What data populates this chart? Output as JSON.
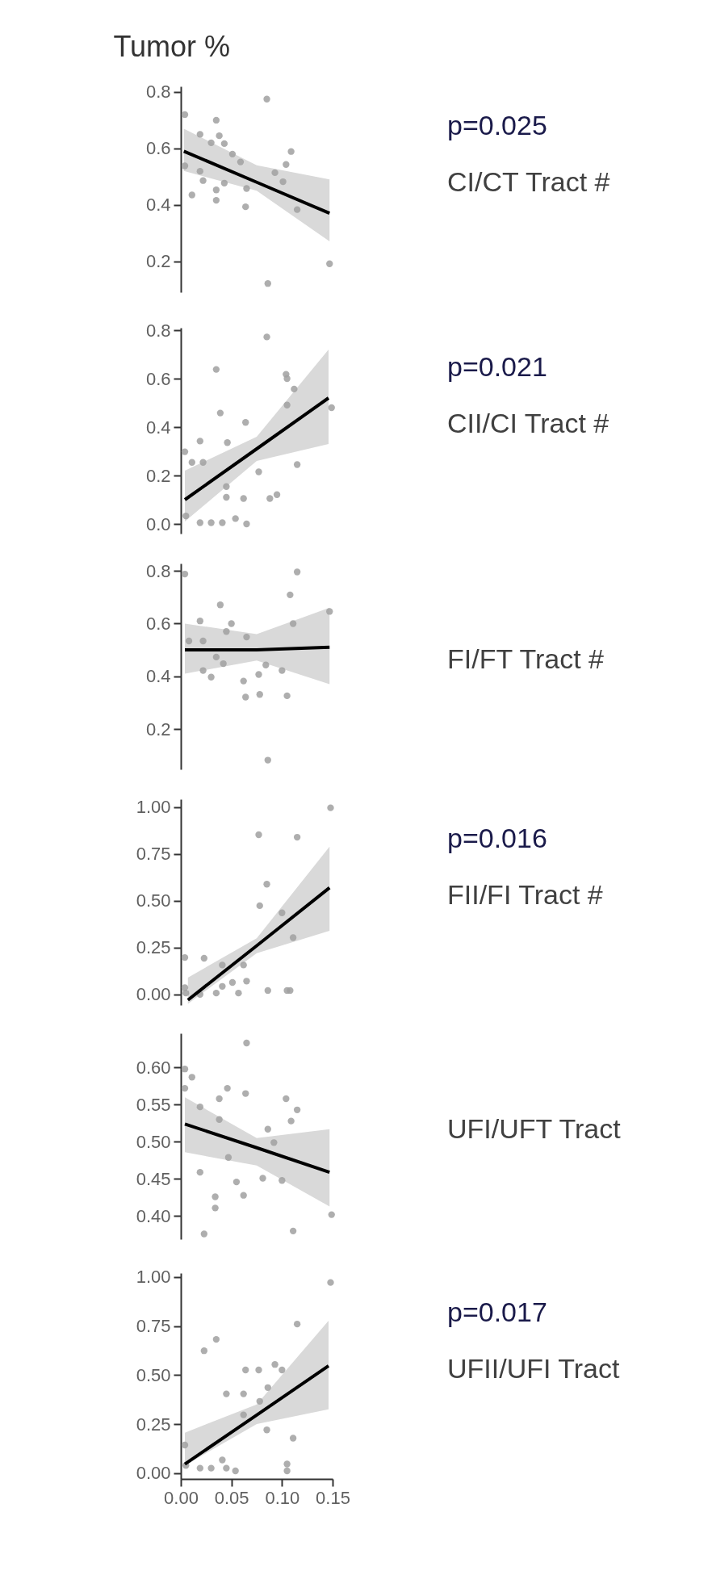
{
  "chart_data": [
    {
      "type": "scatter",
      "title": "Tumor %",
      "annotations": [
        "p=0.025",
        "CI/CT Tract #"
      ],
      "grid": false,
      "tick_labels": "y",
      "xlim": [
        0,
        0.15
      ],
      "ylim": [
        0.09,
        0.82
      ],
      "yticks": [
        0.2,
        0.4,
        0.6,
        0.8
      ],
      "series": [
        {
          "type": "scatter",
          "marker": "circle",
          "color": "#a0a0a0",
          "x": [
            0.085,
            0.004,
            0.035,
            0.019,
            0.038,
            0.043,
            0.004,
            0.019,
            0.022,
            0.051,
            0.059,
            0.043,
            0.011,
            0.035,
            0.035,
            0.064,
            0.065,
            0.093,
            0.104,
            0.109,
            0.101,
            0.115,
            0.147,
            0.086,
            0.03
          ],
          "values": [
            0.775,
            0.72,
            0.7,
            0.65,
            0.645,
            0.617,
            0.538,
            0.519,
            0.486,
            0.58,
            0.552,
            0.477,
            0.435,
            0.453,
            0.416,
            0.393,
            0.458,
            0.514,
            0.543,
            0.589,
            0.482,
            0.383,
            0.191,
            0.121,
            0.62
          ]
        },
        {
          "type": "line",
          "marker": "none",
          "color": "#000000",
          "x": [
            0.003,
            0.075,
            0.147
          ],
          "values": [
            0.59,
            0.48,
            0.37
          ],
          "lower": [
            0.52,
            0.45,
            0.27
          ],
          "upper": [
            0.67,
            0.54,
            0.49
          ]
        }
      ]
    },
    {
      "type": "scatter",
      "annotations": [
        "p=0.021",
        "CII/CI Tract #"
      ],
      "grid": false,
      "tick_labels": "y",
      "xlim": [
        0,
        0.15
      ],
      "ylim": [
        -0.04,
        0.81
      ],
      "yticks": [
        {
          "value": 0,
          "label": "0.0"
        },
        0.2,
        0.4,
        0.6,
        0.8
      ],
      "series": [
        {
          "type": "scatter",
          "marker": "circle",
          "color": "#a0a0a0",
          "x": [
            0.085,
            0.035,
            0.104,
            0.105,
            0.112,
            0.105,
            0.149,
            0.039,
            0.064,
            0.019,
            0.046,
            0.004,
            0.011,
            0.022,
            0.115,
            0.077,
            0.045,
            0.045,
            0.062,
            0.088,
            0.095,
            0.005,
            0.019,
            0.03,
            0.041,
            0.054,
            0.065
          ],
          "values": [
            0.772,
            0.638,
            0.618,
            0.6,
            0.557,
            0.491,
            0.48,
            0.458,
            0.419,
            0.342,
            0.336,
            0.298,
            0.254,
            0.254,
            0.245,
            0.215,
            0.154,
            0.11,
            0.105,
            0.105,
            0.121,
            0.033,
            0.005,
            0.005,
            0.005,
            0.022,
            0.0
          ]
        },
        {
          "type": "line",
          "marker": "none",
          "color": "#000000",
          "x": [
            0.004,
            0.075,
            0.146
          ],
          "values": [
            0.1,
            0.31,
            0.52
          ],
          "lower": [
            0.01,
            0.26,
            0.33
          ],
          "upper": [
            0.22,
            0.36,
            0.72
          ]
        }
      ]
    },
    {
      "type": "scatter",
      "annotations": [
        "FI/FT Tract #"
      ],
      "grid": false,
      "tick_labels": "y",
      "xlim": [
        0,
        0.15
      ],
      "ylim": [
        0.047,
        0.828
      ],
      "yticks": [
        0.2,
        0.4,
        0.6,
        0.8
      ],
      "series": [
        {
          "type": "scatter",
          "marker": "circle",
          "color": "#a0a0a0",
          "x": [
            0.004,
            0.115,
            0.108,
            0.039,
            0.019,
            0.05,
            0.147,
            0.111,
            0.045,
            0.065,
            0.008,
            0.022,
            0.035,
            0.042,
            0.022,
            0.03,
            0.084,
            0.077,
            0.1,
            0.062,
            0.064,
            0.078,
            0.105,
            0.086
          ],
          "values": [
            0.788,
            0.796,
            0.709,
            0.671,
            0.61,
            0.6,
            0.646,
            0.6,
            0.57,
            0.549,
            0.534,
            0.534,
            0.473,
            0.448,
            0.422,
            0.397,
            0.443,
            0.407,
            0.422,
            0.382,
            0.321,
            0.331,
            0.326,
            0.082
          ]
        },
        {
          "type": "line",
          "marker": "none",
          "color": "#000000",
          "x": [
            0.004,
            0.075,
            0.147
          ],
          "values": [
            0.5,
            0.5,
            0.51
          ],
          "lower": [
            0.41,
            0.46,
            0.37
          ],
          "upper": [
            0.6,
            0.56,
            0.66
          ]
        }
      ]
    },
    {
      "type": "scatter",
      "annotations": [
        "p=0.016",
        "FII/FI Tract #"
      ],
      "grid": false,
      "tick_labels": "y",
      "xlim": [
        0,
        0.15
      ],
      "ylim": [
        -0.057,
        1.043
      ],
      "yticks": [
        {
          "value": 0,
          "label": "0.00"
        },
        {
          "value": 0.25,
          "label": "0.25"
        },
        {
          "value": 0.5,
          "label": "0.50"
        },
        {
          "value": 0.75,
          "label": "0.75"
        },
        {
          "value": 1,
          "label": "1.00"
        }
      ],
      "series": [
        {
          "type": "scatter",
          "marker": "circle",
          "color": "#a0a0a0",
          "x": [
            0.148,
            0.077,
            0.115,
            0.085,
            0.078,
            0.1,
            0.111,
            0.004,
            0.023,
            0.041,
            0.062,
            0.065,
            0.051,
            0.041,
            0.004,
            0.005,
            0.019,
            0.035,
            0.057,
            0.086,
            0.105,
            0.108
          ],
          "values": [
            0.997,
            0.853,
            0.84,
            0.589,
            0.474,
            0.436,
            0.303,
            0.197,
            0.193,
            0.157,
            0.157,
            0.071,
            0.064,
            0.043,
            0.036,
            0.007,
            0.0,
            0.007,
            0.007,
            0.021,
            0.021,
            0.021
          ]
        },
        {
          "type": "line",
          "marker": "none",
          "color": "#000000",
          "x": [
            0.007,
            0.075,
            0.147
          ],
          "values": [
            -0.03,
            0.26,
            0.57
          ],
          "lower": [
            -0.05,
            0.22,
            0.34
          ],
          "upper": [
            0.09,
            0.3,
            0.79
          ]
        }
      ]
    },
    {
      "type": "scatter",
      "annotations": [
        "UFI/UFT Tract"
      ],
      "grid": false,
      "tick_labels": "y",
      "xlim": [
        0,
        0.15
      ],
      "ylim": [
        0.369,
        0.646
      ],
      "yticks": [
        {
          "value": 0.4,
          "label": "0.40"
        },
        0.45,
        {
          "value": 0.5,
          "label": "0.50"
        },
        0.55,
        {
          "value": 0.6,
          "label": "0.60"
        }
      ],
      "series": [
        {
          "type": "scatter",
          "marker": "circle",
          "color": "#a0a0a0",
          "x": [
            0.065,
            0.004,
            0.011,
            0.004,
            0.046,
            0.064,
            0.038,
            0.019,
            0.104,
            0.115,
            0.109,
            0.038,
            0.086,
            0.092,
            0.047,
            0.019,
            0.055,
            0.081,
            0.1,
            0.062,
            0.034,
            0.034,
            0.149,
            0.023,
            0.111
          ],
          "values": [
            0.633,
            0.598,
            0.587,
            0.572,
            0.572,
            0.565,
            0.558,
            0.547,
            0.558,
            0.543,
            0.528,
            0.53,
            0.517,
            0.499,
            0.479,
            0.459,
            0.446,
            0.451,
            0.448,
            0.428,
            0.426,
            0.411,
            0.402,
            0.376,
            0.38
          ]
        },
        {
          "type": "line",
          "marker": "none",
          "color": "#000000",
          "x": [
            0.004,
            0.075,
            0.147
          ],
          "values": [
            0.524,
            0.492,
            0.459
          ],
          "lower": [
            0.486,
            0.468,
            0.413
          ],
          "upper": [
            0.56,
            0.505,
            0.517
          ]
        }
      ]
    },
    {
      "type": "scatter",
      "annotations": [
        "p=0.017",
        "UFII/UFI Tract"
      ],
      "grid": false,
      "xlim": [
        0,
        0.15
      ],
      "ylim": [
        -0.03,
        1.02
      ],
      "yticks": [
        {
          "value": 0,
          "label": "0.00"
        },
        {
          "value": 0.25,
          "label": "0.25"
        },
        {
          "value": 0.5,
          "label": "0.50"
        },
        {
          "value": 0.75,
          "label": "0.75"
        },
        {
          "value": 1,
          "label": "1.00"
        }
      ],
      "xticks": [
        {
          "value": 0,
          "label": "0.00"
        },
        0.05,
        {
          "value": 0.1,
          "label": "0.10"
        },
        0.15
      ],
      "series": [
        {
          "type": "scatter",
          "marker": "circle",
          "color": "#a0a0a0",
          "x": [
            0.148,
            0.115,
            0.035,
            0.023,
            0.064,
            0.077,
            0.093,
            0.1,
            0.086,
            0.045,
            0.062,
            0.078,
            0.062,
            0.085,
            0.111,
            0.004,
            0.005,
            0.019,
            0.03,
            0.041,
            0.045,
            0.054,
            0.105,
            0.105
          ],
          "values": [
            0.972,
            0.76,
            0.682,
            0.624,
            0.526,
            0.526,
            0.554,
            0.526,
            0.436,
            0.404,
            0.404,
            0.366,
            0.297,
            0.22,
            0.178,
            0.143,
            0.039,
            0.025,
            0.025,
            0.067,
            0.025,
            0.011,
            0.046,
            0.011
          ]
        },
        {
          "type": "line",
          "marker": "none",
          "color": "#000000",
          "x": [
            0.004,
            0.075,
            0.146
          ],
          "values": [
            0.046,
            0.296,
            0.547
          ],
          "lower": [
            0.039,
            0.25,
            0.325
          ],
          "upper": [
            0.206,
            0.35,
            0.777
          ]
        }
      ]
    }
  ]
}
